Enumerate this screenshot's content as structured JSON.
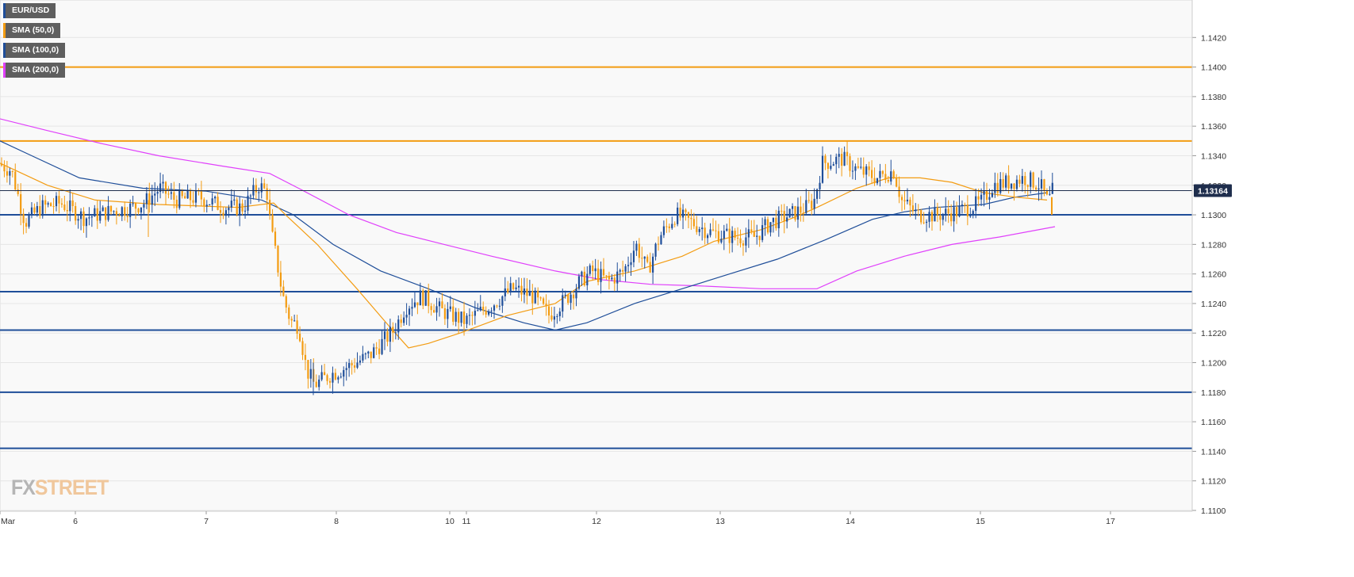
{
  "legend": [
    {
      "label": "EUR/USD",
      "color": "#1f4e99"
    },
    {
      "label": "SMA (50,0)",
      "color": "#f39c12"
    },
    {
      "label": "SMA (100,0)",
      "color": "#1f4e99"
    },
    {
      "label": "SMA (200,0)",
      "color": "#e040fb"
    }
  ],
  "logo": {
    "fx": "FX",
    "street": "STREET"
  },
  "chart_data": {
    "type": "candlestick",
    "symbol": "EUR/USD",
    "ylim": [
      1.11,
      1.144
    ],
    "y_ticks": [
      "1.1420",
      "1.1400",
      "1.1380",
      "1.1360",
      "1.1340",
      "1.1320",
      "1.1300",
      "1.1280",
      "1.1260",
      "1.1240",
      "1.1220",
      "1.1200",
      "1.1180",
      "1.1160",
      "1.1140",
      "1.1120",
      "1.1100"
    ],
    "x_tick_labels": [
      "Mar",
      "6",
      "7",
      "8",
      "10",
      "11",
      "12",
      "13",
      "14",
      "15",
      "17"
    ],
    "current_price": "1.13164",
    "current_price_value": 1.13164,
    "horizontal_levels": [
      {
        "value": 1.14,
        "color": "#f39c12"
      },
      {
        "value": 1.135,
        "color": "#f39c12"
      },
      {
        "value": 1.13,
        "color": "#1f4e99"
      },
      {
        "value": 1.1248,
        "color": "#1f4e99"
      },
      {
        "value": 1.1222,
        "color": "#1f4e99"
      },
      {
        "value": 1.118,
        "color": "#1f4e99"
      },
      {
        "value": 1.1142,
        "color": "#1f4e99"
      }
    ],
    "price_path": [
      [
        0,
        1.1335
      ],
      [
        18,
        1.133
      ],
      [
        35,
        1.1295
      ],
      [
        55,
        1.1305
      ],
      [
        80,
        1.1308
      ],
      [
        110,
        1.1298
      ],
      [
        140,
        1.1302
      ],
      [
        170,
        1.1305
      ],
      [
        185,
        1.1308
      ],
      [
        205,
        1.1318
      ],
      [
        225,
        1.131
      ],
      [
        255,
        1.1312
      ],
      [
        285,
        1.1305
      ],
      [
        310,
        1.1305
      ],
      [
        330,
        1.132
      ],
      [
        340,
        1.1315
      ],
      [
        345,
        1.129
      ],
      [
        352,
        1.127
      ],
      [
        360,
        1.1245
      ],
      [
        370,
        1.1228
      ],
      [
        380,
        1.1225
      ],
      [
        390,
        1.1195
      ],
      [
        400,
        1.1185
      ],
      [
        420,
        1.1192
      ],
      [
        445,
        1.1198
      ],
      [
        470,
        1.1205
      ],
      [
        500,
        1.1222
      ],
      [
        515,
        1.1238
      ],
      [
        535,
        1.1245
      ],
      [
        560,
        1.1235
      ],
      [
        590,
        1.1228
      ],
      [
        620,
        1.1238
      ],
      [
        650,
        1.125
      ],
      [
        675,
        1.1245
      ],
      [
        695,
        1.1232
      ],
      [
        715,
        1.1242
      ],
      [
        735,
        1.1255
      ],
      [
        750,
        1.1262
      ],
      [
        770,
        1.1255
      ],
      [
        790,
        1.1262
      ],
      [
        805,
        1.128
      ],
      [
        820,
        1.1262
      ],
      [
        835,
        1.1285
      ],
      [
        855,
        1.13
      ],
      [
        875,
        1.1295
      ],
      [
        900,
        1.1288
      ],
      [
        930,
        1.1285
      ],
      [
        955,
        1.1285
      ],
      [
        975,
        1.1295
      ],
      [
        1000,
        1.13
      ],
      [
        1020,
        1.1305
      ],
      [
        1030,
        1.131
      ],
      [
        1040,
        1.1335
      ],
      [
        1065,
        1.1338
      ],
      [
        1085,
        1.133
      ],
      [
        1110,
        1.1325
      ],
      [
        1130,
        1.133
      ],
      [
        1140,
        1.131
      ],
      [
        1160,
        1.13
      ],
      [
        1185,
        1.13
      ],
      [
        1210,
        1.1302
      ],
      [
        1240,
        1.1308
      ],
      [
        1255,
        1.132
      ],
      [
        1275,
        1.1322
      ],
      [
        1295,
        1.1325
      ],
      [
        1315,
        1.132
      ],
      [
        1325,
        1.1308
      ],
      [
        1330,
        1.1316
      ]
    ],
    "sma_50": [
      [
        0,
        1.1335
      ],
      [
        60,
        1.132
      ],
      [
        120,
        1.131
      ],
      [
        200,
        1.1307
      ],
      [
        300,
        1.1305
      ],
      [
        345,
        1.1308
      ],
      [
        360,
        1.13
      ],
      [
        400,
        1.128
      ],
      [
        450,
        1.125
      ],
      [
        490,
        1.1225
      ],
      [
        515,
        1.121
      ],
      [
        540,
        1.1213
      ],
      [
        580,
        1.122
      ],
      [
        640,
        1.1232
      ],
      [
        700,
        1.124
      ],
      [
        740,
        1.1255
      ],
      [
        800,
        1.1262
      ],
      [
        860,
        1.1272
      ],
      [
        900,
        1.1282
      ],
      [
        960,
        1.129
      ],
      [
        1000,
        1.1298
      ],
      [
        1030,
        1.1305
      ],
      [
        1080,
        1.1318
      ],
      [
        1120,
        1.1325
      ],
      [
        1160,
        1.1325
      ],
      [
        1200,
        1.1322
      ],
      [
        1240,
        1.1315
      ],
      [
        1280,
        1.1312
      ],
      [
        1320,
        1.131
      ]
    ],
    "sma_100": [
      [
        0,
        1.135
      ],
      [
        40,
        1.134
      ],
      [
        100,
        1.1325
      ],
      [
        180,
        1.1318
      ],
      [
        260,
        1.1316
      ],
      [
        330,
        1.131
      ],
      [
        370,
        1.13
      ],
      [
        420,
        1.128
      ],
      [
        480,
        1.1262
      ],
      [
        540,
        1.125
      ],
      [
        600,
        1.1237
      ],
      [
        660,
        1.1227
      ],
      [
        700,
        1.1222
      ],
      [
        740,
        1.1227
      ],
      [
        800,
        1.124
      ],
      [
        860,
        1.125
      ],
      [
        920,
        1.126
      ],
      [
        980,
        1.127
      ],
      [
        1040,
        1.1283
      ],
      [
        1100,
        1.1297
      ],
      [
        1140,
        1.1302
      ],
      [
        1180,
        1.1305
      ],
      [
        1240,
        1.1307
      ],
      [
        1280,
        1.1312
      ],
      [
        1320,
        1.1315
      ]
    ],
    "sma_200": [
      [
        0,
        1.1365
      ],
      [
        60,
        1.1357
      ],
      [
        130,
        1.1348
      ],
      [
        200,
        1.134
      ],
      [
        280,
        1.1333
      ],
      [
        340,
        1.1328
      ],
      [
        380,
        1.1317
      ],
      [
        440,
        1.13
      ],
      [
        500,
        1.1288
      ],
      [
        560,
        1.128
      ],
      [
        620,
        1.1272
      ],
      [
        700,
        1.1262
      ],
      [
        760,
        1.1256
      ],
      [
        820,
        1.1253
      ],
      [
        880,
        1.1252
      ],
      [
        960,
        1.125
      ],
      [
        1030,
        1.125
      ],
      [
        1080,
        1.1262
      ],
      [
        1140,
        1.1272
      ],
      [
        1200,
        1.128
      ],
      [
        1260,
        1.1285
      ],
      [
        1330,
        1.1292
      ]
    ]
  }
}
